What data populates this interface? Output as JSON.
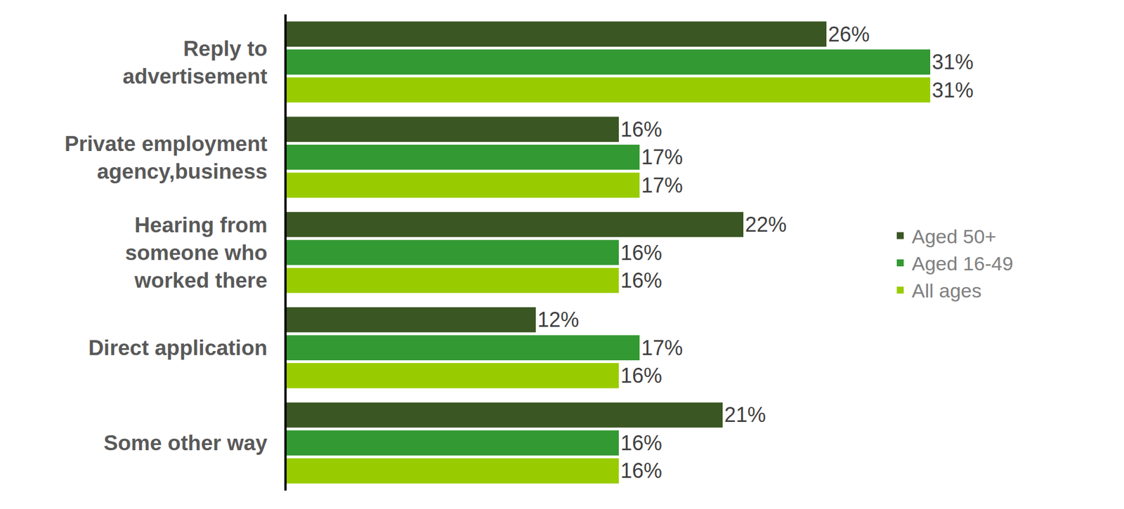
{
  "chart_data": {
    "type": "bar",
    "orientation": "horizontal",
    "categories": [
      "Reply to\nadvertisement",
      "Private employment\nagency,business",
      "Hearing from\nsomeone who\nworked there",
      "Direct application",
      "Some other way"
    ],
    "series": [
      {
        "name": "Aged 50+",
        "color": "#3a5623",
        "values": [
          26,
          16,
          22,
          12,
          21
        ],
        "value_labels": [
          "26%",
          "16%",
          "22%",
          "12%",
          "21%"
        ]
      },
      {
        "name": "Aged 16-49",
        "color": "#339933",
        "values": [
          31,
          17,
          16,
          17,
          16
        ],
        "value_labels": [
          "31%",
          "17%",
          "16%",
          "17%",
          "16%"
        ]
      },
      {
        "name": "All ages",
        "color": "#99cc00",
        "values": [
          31,
          17,
          16,
          16,
          16
        ],
        "value_labels": [
          "31%",
          "17%",
          "16%",
          "16%",
          "16%"
        ]
      }
    ],
    "xlim": [
      0,
      40
    ],
    "data_labels": true,
    "tick_labels": "y",
    "grid": false,
    "legend": "right"
  }
}
